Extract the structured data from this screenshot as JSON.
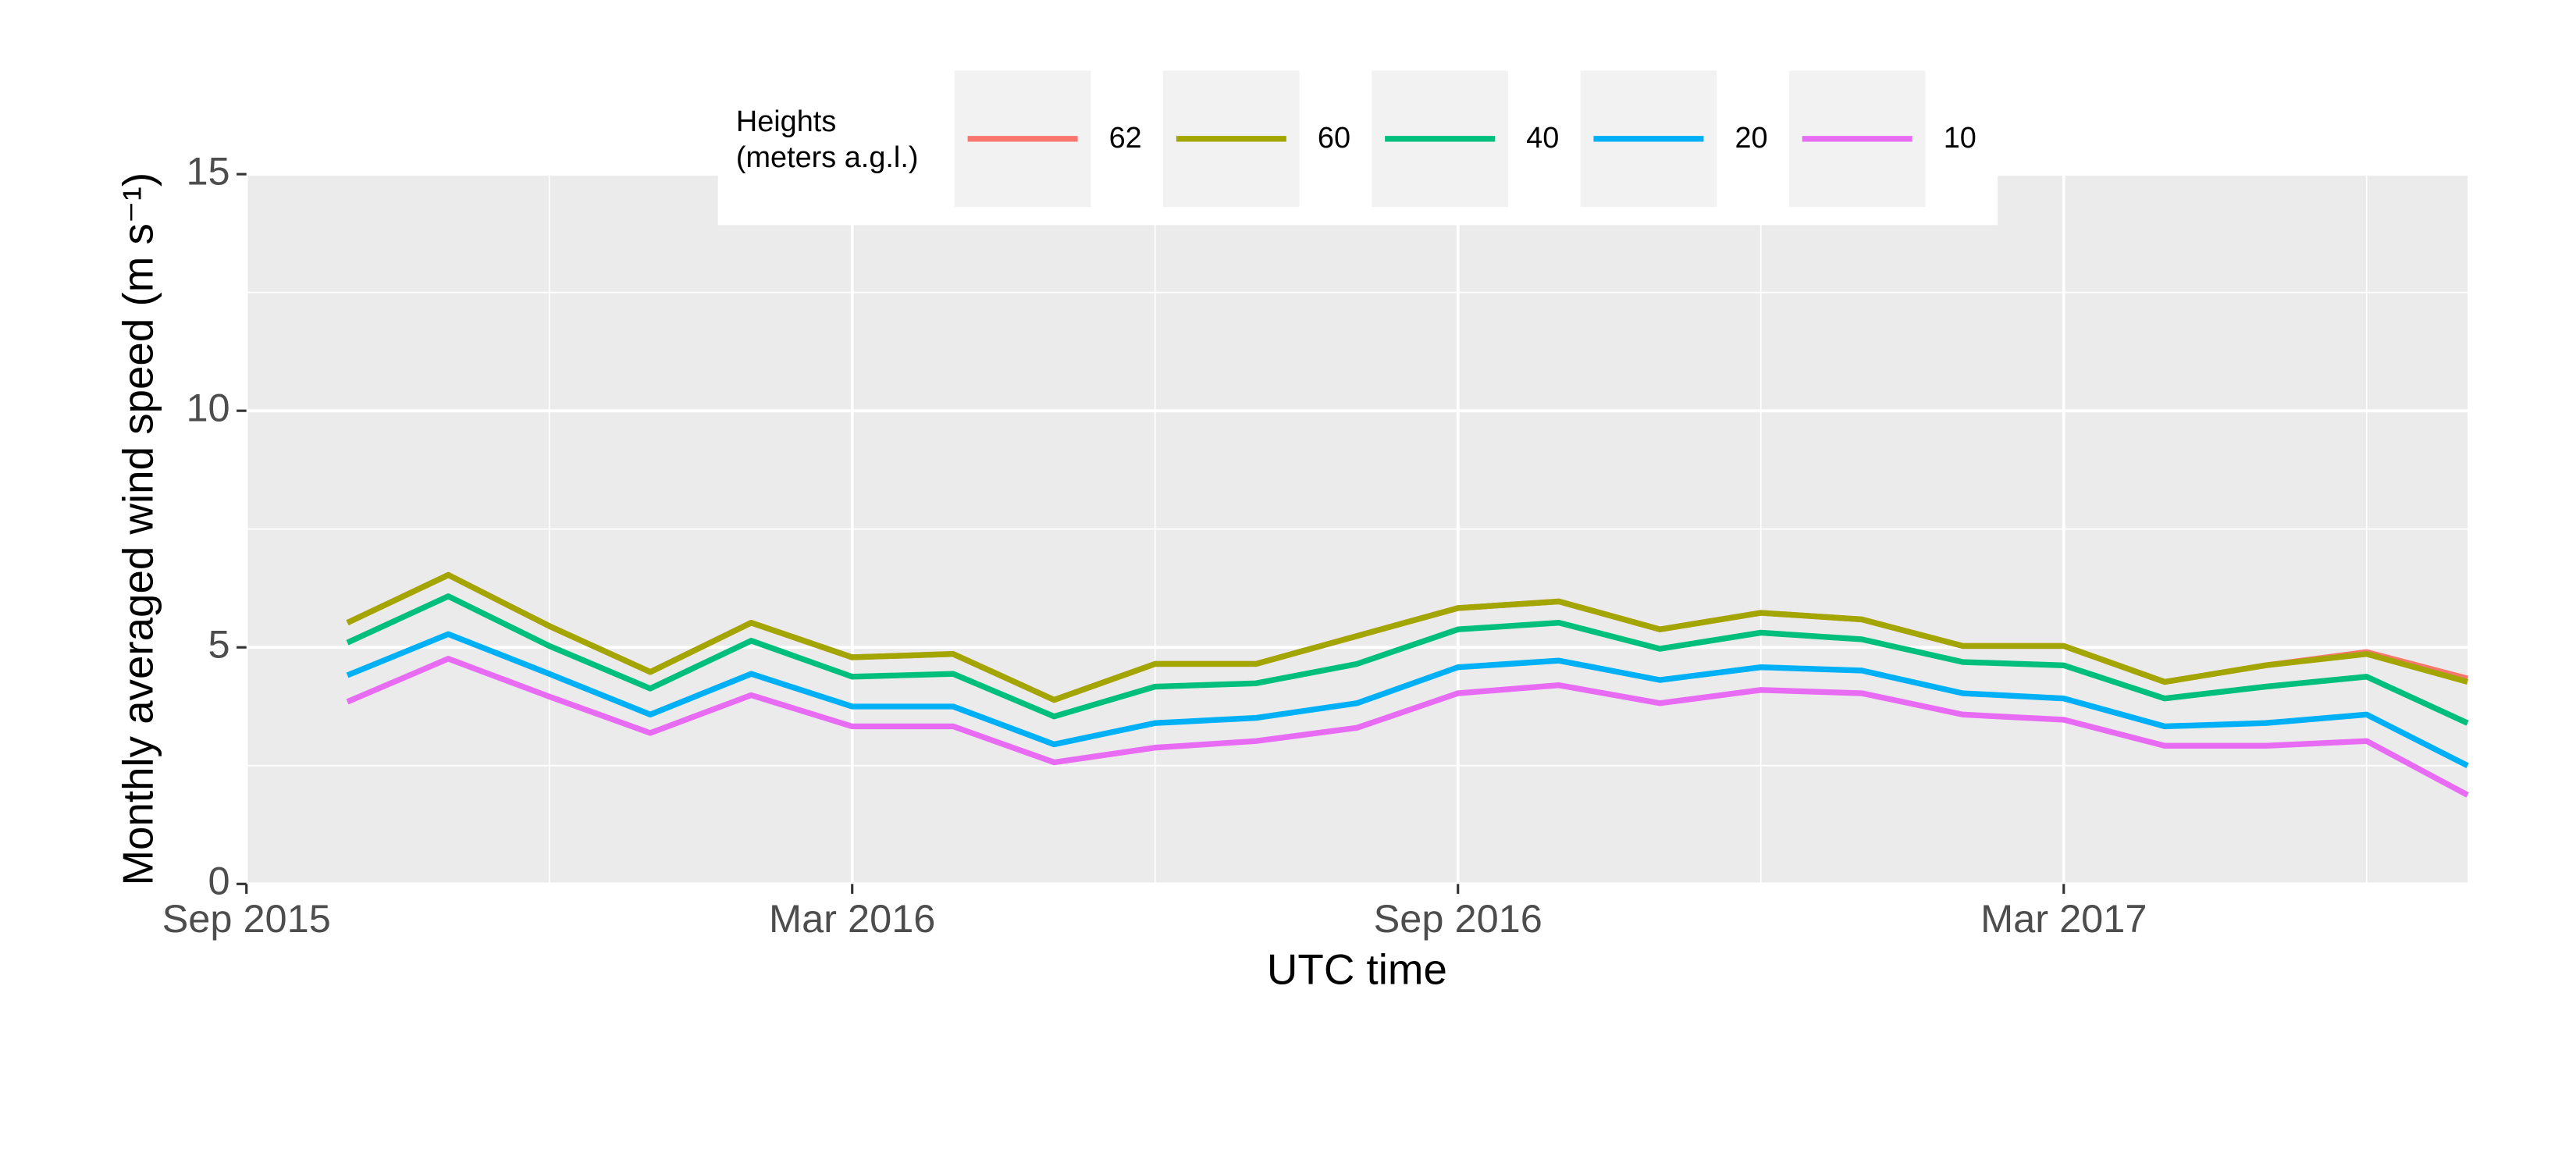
{
  "chart_data": {
    "type": "line",
    "x_label": "UTC time",
    "y_label": "Monthly averaged wind speed (m s⁻¹)",
    "legend_title": [
      "Heights",
      "(meters a.g.l.)"
    ],
    "legend_position": "top",
    "x": [
      "2015-10",
      "2015-11",
      "2015-12",
      "2016-01",
      "2016-02",
      "2016-03",
      "2016-04",
      "2016-05",
      "2016-06",
      "2016-07",
      "2016-08",
      "2016-09",
      "2016-10",
      "2016-11",
      "2016-12",
      "2017-01",
      "2017-02",
      "2017-03",
      "2017-04",
      "2017-05",
      "2017-06",
      "2017-07"
    ],
    "xlim": [
      "2015-09",
      "2017-07"
    ],
    "xticks": [
      {
        "value": "2015-09",
        "label": "Sep 2015"
      },
      {
        "value": "2016-03",
        "label": "Mar 2016"
      },
      {
        "value": "2016-09",
        "label": "Sep 2016"
      },
      {
        "value": "2017-03",
        "label": "Mar 2017"
      }
    ],
    "x_minor_ticks": [
      "2015-12",
      "2016-06",
      "2016-12",
      "2017-06"
    ],
    "ylim": [
      0,
      15
    ],
    "yticks": [
      0,
      5,
      10,
      15
    ],
    "y_minor_ticks": [
      2.5,
      7.5,
      12.5
    ],
    "grid": true,
    "series": [
      {
        "name": "62",
        "color": "#F8766D",
        "values": [
          5.52,
          6.53,
          5.45,
          4.48,
          5.52,
          4.79,
          4.86,
          3.89,
          4.65,
          4.65,
          5.24,
          5.83,
          5.97,
          5.38,
          5.73,
          5.59,
          5.03,
          5.03,
          4.27,
          4.62,
          4.9,
          4.34
        ]
      },
      {
        "name": "60",
        "color": "#A3A500",
        "values": [
          5.52,
          6.53,
          5.45,
          4.48,
          5.52,
          4.79,
          4.86,
          3.89,
          4.65,
          4.65,
          5.24,
          5.83,
          5.97,
          5.38,
          5.73,
          5.59,
          5.03,
          5.03,
          4.27,
          4.62,
          4.86,
          4.27
        ]
      },
      {
        "name": "40",
        "color": "#00BF7D",
        "values": [
          5.1,
          6.08,
          5.03,
          4.13,
          5.14,
          4.38,
          4.44,
          3.54,
          4.17,
          4.24,
          4.65,
          5.38,
          5.52,
          4.97,
          5.31,
          5.17,
          4.69,
          4.62,
          3.92,
          4.17,
          4.38,
          3.4
        ]
      },
      {
        "name": "20",
        "color": "#00B0F6",
        "values": [
          4.41,
          5.28,
          4.44,
          3.58,
          4.44,
          3.75,
          3.75,
          2.95,
          3.4,
          3.51,
          3.82,
          4.58,
          4.72,
          4.31,
          4.58,
          4.51,
          4.03,
          3.92,
          3.33,
          3.4,
          3.58,
          2.5
        ]
      },
      {
        "name": "10",
        "color": "#E76BF3",
        "values": [
          3.85,
          4.76,
          3.96,
          3.19,
          3.99,
          3.33,
          3.33,
          2.57,
          2.88,
          3.02,
          3.3,
          4.03,
          4.2,
          3.82,
          4.1,
          4.03,
          3.58,
          3.47,
          2.92,
          2.92,
          3.02,
          1.88
        ]
      }
    ]
  }
}
